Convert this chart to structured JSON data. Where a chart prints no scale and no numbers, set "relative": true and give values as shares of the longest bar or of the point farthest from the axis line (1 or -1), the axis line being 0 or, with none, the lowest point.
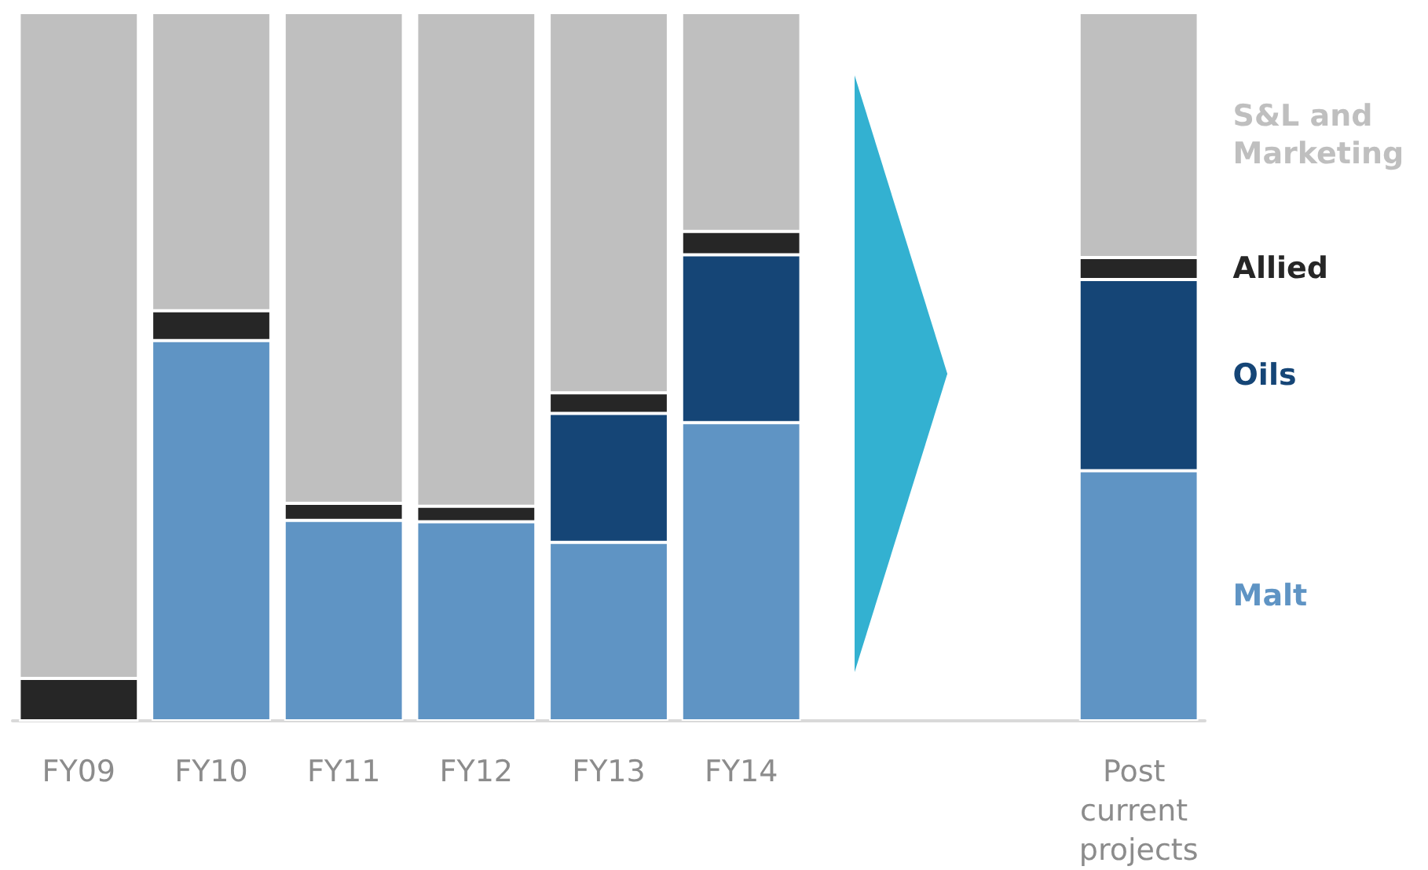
{
  "chart_data": {
    "type": "bar",
    "stacked": true,
    "relative": true,
    "categories": [
      "FY09",
      "FY10",
      "FY11",
      "FY12",
      "FY13",
      "FY14",
      null,
      null,
      "Post current projects"
    ],
    "series": [
      {
        "name": "Malt",
        "color": "#5f94c4",
        "values": [
          0,
          0.537,
          0.283,
          0.281,
          0.252,
          0.421,
          null,
          null,
          0.353
        ]
      },
      {
        "name": "Oils",
        "color": "#154576",
        "values": [
          0,
          0,
          0,
          0,
          0.182,
          0.237,
          null,
          null,
          0.27
        ]
      },
      {
        "name": "Allied",
        "color": "#262626",
        "values": [
          0.06,
          0.042,
          0.024,
          0.022,
          0.029,
          0.033,
          null,
          null,
          0.031
        ]
      },
      {
        "name": "S&L and Marketing",
        "color": "#bfbfbf",
        "values": [
          0.94,
          0.421,
          0.693,
          0.697,
          0.537,
          0.309,
          null,
          null,
          0.346
        ]
      }
    ]
  }
}
